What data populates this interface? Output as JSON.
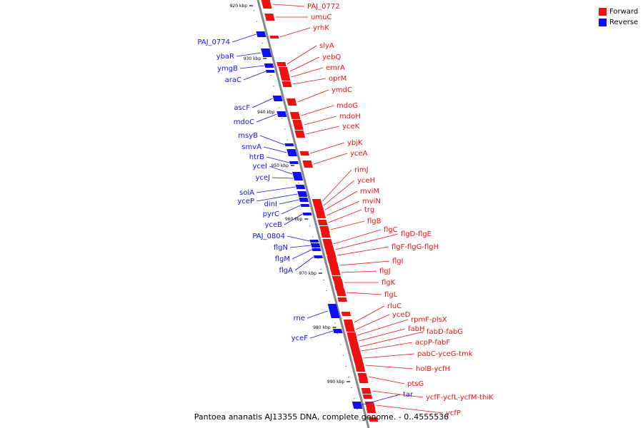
{
  "colors": {
    "forward": "#ee1111",
    "reverse": "#1111ee",
    "backbone": "#888888"
  },
  "legend": {
    "forward": "Forward",
    "reverse": "Reverse"
  },
  "caption": "Pantoea ananatis AJ13355 DNA, complete genome. - 0..4555536",
  "ticks": [
    "920 kbp",
    "930 kbp",
    "940 kbp",
    "950 kbp",
    "960 kbp",
    "970 kbp",
    "980 kbp",
    "990 kbp"
  ],
  "forward_genes": [
    "PAJ_0772",
    "umuC",
    "yrhK",
    "slyA",
    "yebQ",
    "emrA",
    "oprM",
    "ymdC",
    "mdoG",
    "mdoH",
    "yceK",
    "ybjK",
    "yceA",
    "rimJ",
    "yceH",
    "mviM",
    "mviN",
    "trg",
    "flgB",
    "flgC",
    "flgD",
    "flgE",
    "flgF",
    "flgG",
    "flgH",
    "flgI",
    "flgJ",
    "flgK",
    "flgL",
    "rluC",
    "yceD",
    "rpmF",
    "plsX",
    "fabH",
    "fabD",
    "fabG",
    "acpP",
    "fabF",
    "pabC",
    "yceG",
    "tmk",
    "holB",
    "ycfH",
    "ptsG",
    "ycfF",
    "ycfL",
    "ycfM",
    "thiK",
    "ycfP"
  ],
  "reverse_genes": [
    "PAJ_0774",
    "ybaR",
    "ymgB",
    "araC",
    "ascF",
    "mdoC",
    "msyB",
    "smvA",
    "htrB",
    "yceI",
    "yceJ",
    "solA",
    "yceP",
    "dinI",
    "pyrC",
    "yceB",
    "PAJ_0804",
    "flgN",
    "flgM",
    "flgA",
    "rne",
    "yceF",
    "tar"
  ]
}
